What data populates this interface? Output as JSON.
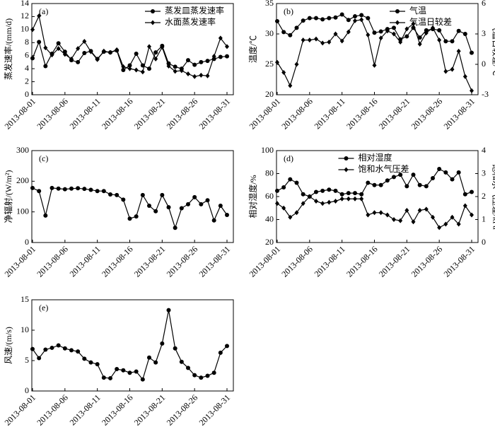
{
  "chart_data": [
    {
      "type": "line",
      "label": "(a)",
      "ylabel": "蒸发速率/(mm/d)",
      "legend": "upper right",
      "categories": [
        "2013-08-01",
        null,
        null,
        null,
        null,
        "2013-08-06",
        null,
        null,
        null,
        null,
        "2013-08-11",
        null,
        null,
        null,
        null,
        "2013-08-16",
        null,
        null,
        null,
        null,
        "2013-08-21",
        null,
        null,
        null,
        null,
        "2013-08-26",
        null,
        null,
        null,
        null,
        "2013-08-31"
      ],
      "ylim": [
        0,
        14
      ],
      "yticks": [
        0,
        2,
        4,
        6,
        8,
        10,
        12,
        14
      ],
      "series": [
        {
          "name": "蒸发皿蒸发速率",
          "color": "#000000",
          "marker": "circle",
          "values": [
            5.6,
            8.1,
            4.4,
            6.3,
            7.9,
            6.6,
            5.3,
            5.0,
            6.4,
            6.7,
            5.5,
            6.6,
            6.5,
            6.8,
            3.8,
            4.5,
            6.3,
            4.5,
            4.0,
            6.5,
            7.5,
            4.8,
            4.3,
            4.0,
            5.3,
            4.6,
            5.0,
            5.2,
            5.5,
            5.8,
            5.9
          ]
        },
        {
          "name": "水面蒸发速率",
          "color": "#000000",
          "marker": "diamond",
          "values": [
            10.0,
            12.1,
            7.2,
            6.1,
            7.1,
            6.2,
            5.5,
            7.1,
            8.2,
            6.6,
            5.4,
            6.7,
            6.5,
            6.9,
            4.3,
            4.0,
            3.8,
            3.5,
            7.4,
            5.5,
            7.3,
            4.4,
            3.6,
            3.7,
            3.2,
            2.8,
            3.0,
            2.9,
            5.9,
            8.7,
            7.4
          ]
        }
      ]
    },
    {
      "type": "line",
      "label": "(b)",
      "ylabel": "温度/℃",
      "y2label": "气温日较差/℃",
      "legend": "upper right",
      "categories": [
        "2013-08-01",
        null,
        null,
        null,
        null,
        "2013-08-06",
        null,
        null,
        null,
        null,
        "2013-08-11",
        null,
        null,
        null,
        null,
        "2013-08-16",
        null,
        null,
        null,
        null,
        "2013-08-21",
        null,
        null,
        null,
        null,
        "2013-08-26",
        null,
        null,
        null,
        null,
        "2013-08-31"
      ],
      "ylim": [
        20,
        35
      ],
      "yticks": [
        20,
        25,
        30,
        35
      ],
      "y2lim": [
        -3,
        6
      ],
      "y2ticks": [
        -3,
        0,
        3,
        6
      ],
      "series": [
        {
          "name": "气温",
          "color": "#000000",
          "marker": "circle",
          "values": [
            32.1,
            30.3,
            29.8,
            31.0,
            32.2,
            32.6,
            32.6,
            32.4,
            32.6,
            32.7,
            33.2,
            32.3,
            32.9,
            33.1,
            32.6,
            30.2,
            30.4,
            30.8,
            31.0,
            29.1,
            29.6,
            31.0,
            29.4,
            30.6,
            30.8,
            30.6,
            28.8,
            28.8,
            30.5,
            30.0,
            26.9
          ]
        },
        {
          "name": "气温日较差",
          "color": "#000000",
          "marker": "diamond",
          "axis": "y2",
          "values": [
            0.2,
            -0.8,
            -2.1,
            0.0,
            2.4,
            2.4,
            2.5,
            2.1,
            2.2,
            3.0,
            2.3,
            3.2,
            4.3,
            4.4,
            2.9,
            -0.1,
            2.6,
            3.3,
            3.0,
            2.2,
            3.5,
            4.0,
            2.0,
            3.1,
            3.6,
            2.4,
            -0.7,
            -0.5,
            1.3,
            -1.2,
            -2.6
          ]
        }
      ]
    },
    {
      "type": "line",
      "label": "(c)",
      "ylabel": "净辐射/(W/m²)",
      "categories": [
        "2013-08-01",
        null,
        null,
        null,
        null,
        "2013-08-06",
        null,
        null,
        null,
        null,
        "2013-08-11",
        null,
        null,
        null,
        null,
        "2013-08-16",
        null,
        null,
        null,
        null,
        "2013-08-21",
        null,
        null,
        null,
        null,
        "2013-08-26",
        null,
        null,
        null,
        null,
        "2013-08-31"
      ],
      "ylim": [
        0,
        300
      ],
      "yticks": [
        0,
        100,
        200,
        300
      ],
      "series": [
        {
          "name": "净辐射",
          "color": "#000000",
          "marker": "circle",
          "values": [
            178,
            168,
            88,
            178,
            176,
            174,
            176,
            177,
            175,
            172,
            168,
            168,
            157,
            155,
            140,
            78,
            85,
            155,
            120,
            102,
            155,
            115,
            48,
            112,
            125,
            148,
            125,
            138,
            72,
            120,
            90
          ]
        }
      ]
    },
    {
      "type": "line",
      "label": "(d)",
      "ylabel": "相对湿度/%",
      "y2label": "饱和水气压差/kPa",
      "legend": "upper center",
      "categories": [
        "2013-08-01",
        null,
        null,
        null,
        null,
        "2013-08-06",
        null,
        null,
        null,
        null,
        "2013-08-11",
        null,
        null,
        null,
        null,
        "2013-08-16",
        null,
        null,
        null,
        null,
        "2013-08-21",
        null,
        null,
        null,
        null,
        "2013-08-26",
        null,
        null,
        null,
        null,
        "2013-08-31"
      ],
      "ylim": [
        20,
        100
      ],
      "yticks": [
        20,
        40,
        60,
        80,
        100
      ],
      "y2lim": [
        0,
        4
      ],
      "y2ticks": [
        0,
        1,
        2,
        3,
        4
      ],
      "series": [
        {
          "name": "相对湿度",
          "color": "#000000",
          "marker": "circle",
          "values": [
            65,
            68,
            75,
            72,
            62,
            60,
            64,
            65,
            66,
            65,
            62,
            63,
            63,
            62,
            72,
            70,
            70,
            74,
            77,
            79,
            69,
            79,
            70,
            69,
            76,
            84,
            81,
            75,
            81,
            62,
            64
          ]
        },
        {
          "name": "饱和水气压差",
          "color": "#000000",
          "marker": "diamond",
          "axis": "y2",
          "values": [
            1.7,
            1.5,
            1.1,
            1.3,
            1.7,
            2.0,
            1.8,
            1.7,
            1.75,
            1.8,
            1.9,
            1.9,
            1.9,
            1.9,
            1.2,
            1.3,
            1.3,
            1.2,
            1.0,
            0.95,
            1.4,
            0.9,
            1.4,
            1.45,
            1.1,
            0.65,
            0.8,
            1.1,
            0.8,
            1.6,
            1.2
          ]
        }
      ]
    },
    {
      "type": "line",
      "label": "(e)",
      "ylabel": "风速/(m/s)",
      "categories": [
        "2013-08-01",
        null,
        null,
        null,
        null,
        "2013-08-06",
        null,
        null,
        null,
        null,
        "2013-08-11",
        null,
        null,
        null,
        null,
        "2013-08-16",
        null,
        null,
        null,
        null,
        "2013-08-21",
        null,
        null,
        null,
        null,
        "2013-08-26",
        null,
        null,
        null,
        null,
        "2013-08-31"
      ],
      "ylim": [
        0,
        15
      ],
      "yticks": [
        0,
        5,
        10,
        15
      ],
      "series": [
        {
          "name": "风速",
          "color": "#000000",
          "marker": "circle",
          "values": [
            6.9,
            5.4,
            6.8,
            7.1,
            7.5,
            7.0,
            6.7,
            6.5,
            5.3,
            4.7,
            4.4,
            2.2,
            2.1,
            3.6,
            3.4,
            3.0,
            3.2,
            1.9,
            5.5,
            4.7,
            7.8,
            13.3,
            7.0,
            4.8,
            3.8,
            2.6,
            2.2,
            2.5,
            3.0,
            6.3,
            7.4
          ]
        }
      ]
    }
  ]
}
